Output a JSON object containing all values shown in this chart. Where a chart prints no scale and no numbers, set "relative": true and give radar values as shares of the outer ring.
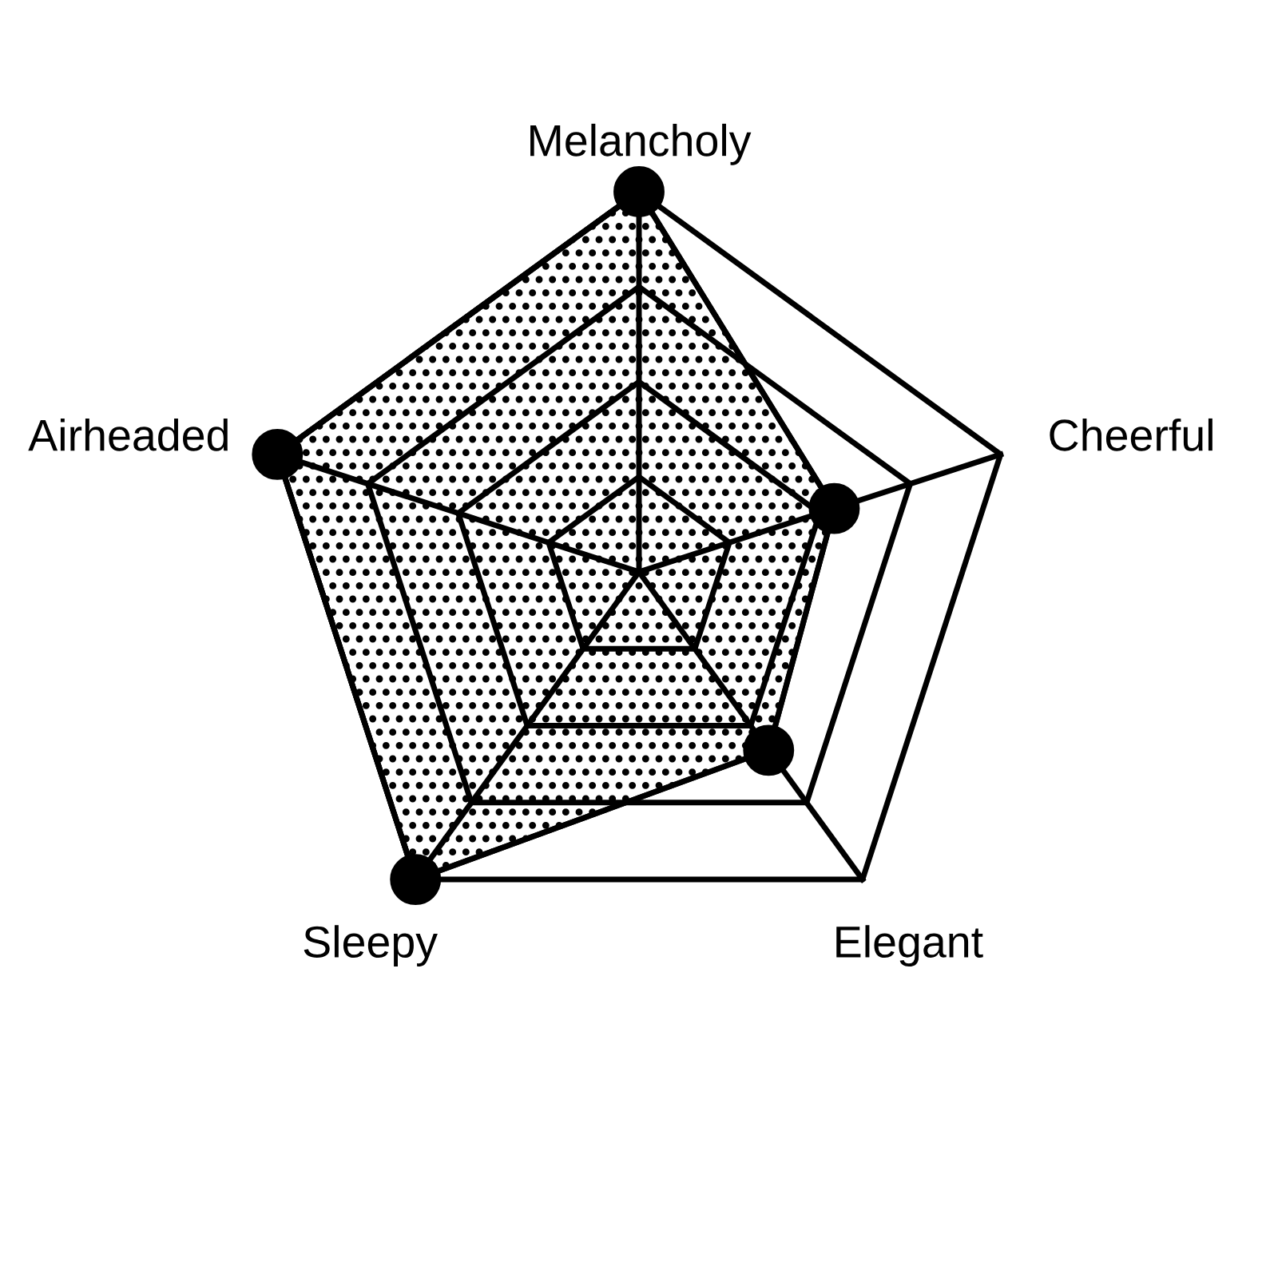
{
  "chart_data": {
    "type": "radar",
    "relative": true,
    "grid": true,
    "marker": "circle",
    "categories": [
      "Melancholy",
      "Cheerful",
      "Elegant",
      "Sleepy",
      "Airheaded"
    ],
    "series": [
      {
        "color": "#000000",
        "values": [
          1.0,
          0.54,
          0.58,
          1.0,
          1.0
        ]
      }
    ]
  }
}
